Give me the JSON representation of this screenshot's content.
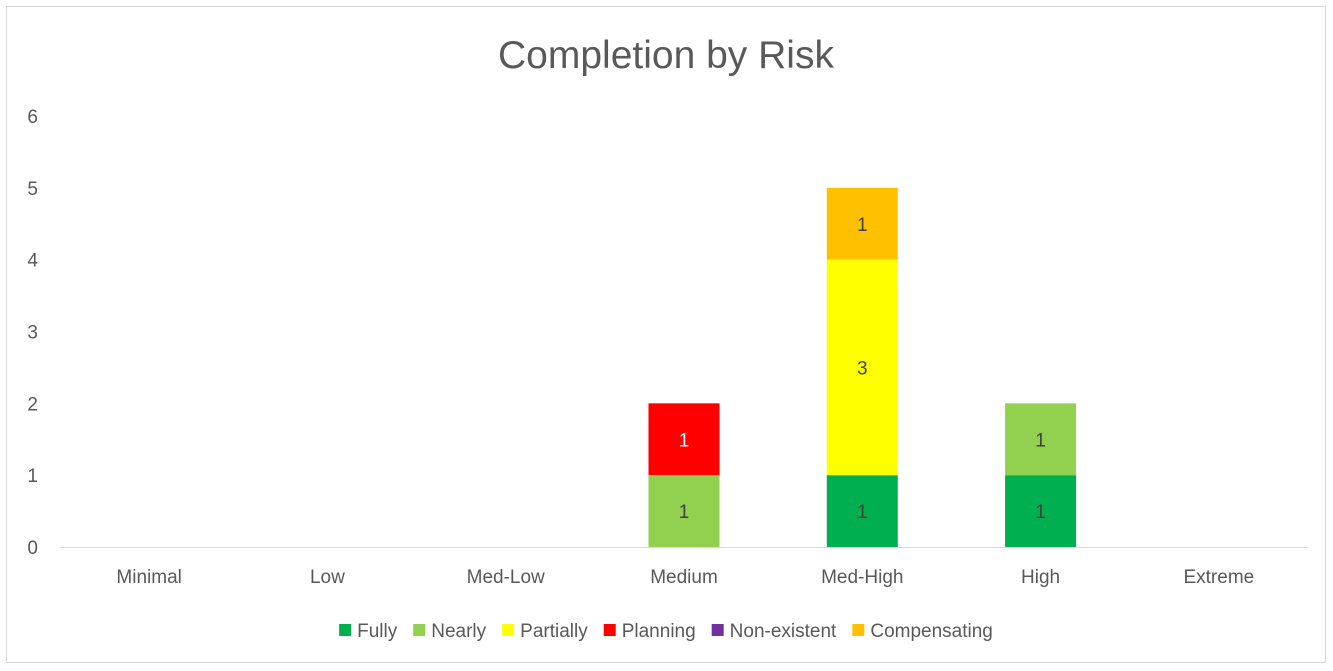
{
  "chart_data": {
    "type": "bar",
    "stacked": true,
    "title": "Completion by Risk",
    "xlabel": "",
    "ylabel": "",
    "categories": [
      "Minimal",
      "Low",
      "Med-Low",
      "Medium",
      "Med-High",
      "High",
      "Extreme"
    ],
    "ylim": [
      0,
      6
    ],
    "yticks": [
      "0",
      "1",
      "2",
      "3",
      "4",
      "5",
      "6"
    ],
    "grid": false,
    "legend_position": "bottom",
    "series": [
      {
        "name": "Fully",
        "color": "#00B050",
        "values": [
          0,
          0,
          0,
          0,
          1,
          1,
          0
        ]
      },
      {
        "name": "Nearly",
        "color": "#92D050",
        "values": [
          0,
          0,
          0,
          1,
          0,
          1,
          0
        ]
      },
      {
        "name": "Partially",
        "color": "#FFFF00",
        "values": [
          0,
          0,
          0,
          0,
          3,
          0,
          0
        ]
      },
      {
        "name": "Planning",
        "color": "#FF0000",
        "values": [
          0,
          0,
          0,
          1,
          0,
          0,
          0
        ]
      },
      {
        "name": "Non-existent",
        "color": "#7030A0",
        "values": [
          0,
          0,
          0,
          0,
          0,
          0,
          0
        ]
      },
      {
        "name": "Compensating",
        "color": "#FFC000",
        "values": [
          0,
          0,
          0,
          0,
          1,
          0,
          0
        ]
      }
    ],
    "data_labels": [
      {
        "category": "Medium",
        "series": "Nearly",
        "text": "1",
        "color": "#404040"
      },
      {
        "category": "Medium",
        "series": "Planning",
        "text": "1",
        "color": "#ffffff"
      },
      {
        "category": "Med-High",
        "series": "Fully",
        "text": "1",
        "color": "#404040"
      },
      {
        "category": "Med-High",
        "series": "Partially",
        "text": "3",
        "color": "#404040"
      },
      {
        "category": "Med-High",
        "series": "Compensating",
        "text": "1",
        "color": "#404040"
      },
      {
        "category": "High",
        "series": "Fully",
        "text": "1",
        "color": "#404040"
      },
      {
        "category": "High",
        "series": "Nearly",
        "text": "1",
        "color": "#404040"
      }
    ]
  }
}
